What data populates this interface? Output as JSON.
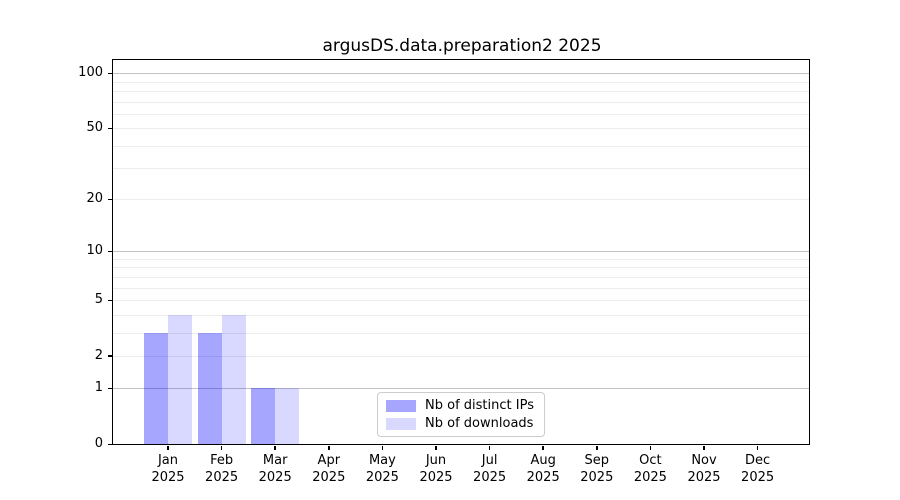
{
  "title": "argusDS.data.preparation2 2025",
  "colors": {
    "background": "#ffffff",
    "axis": "#000000",
    "grid_major": "#c3c3c3",
    "grid_minor": "#ececec",
    "legend_border": "#cccccc",
    "series_distinct_ips": "rgba(0,0,255,0.35)",
    "series_downloads": "rgba(0,0,255,0.15)"
  },
  "chart_data": {
    "type": "bar",
    "title": "argusDS.data.preparation2 2025",
    "categories": [
      "Jan",
      "Feb",
      "Mar",
      "Apr",
      "May",
      "Jun",
      "Jul",
      "Aug",
      "Sep",
      "Oct",
      "Nov",
      "Dec"
    ],
    "year_label": "2025",
    "series": [
      {
        "name": "Nb of distinct IPs",
        "color": "rgba(0,0,255,0.35)",
        "values": [
          3,
          3,
          1,
          0,
          0,
          0,
          0,
          0,
          0,
          0,
          0,
          0
        ]
      },
      {
        "name": "Nb of downloads",
        "color": "rgba(0,0,255,0.15)",
        "values": [
          4,
          4,
          1,
          0,
          0,
          0,
          0,
          0,
          0,
          0,
          0,
          0
        ]
      }
    ],
    "y_axis": {
      "scale": "log1p",
      "tick_labels": [
        0,
        1,
        2,
        5,
        10,
        20,
        50,
        100
      ],
      "grid_major": [
        1,
        10,
        100
      ],
      "grid_minor": [
        2,
        3,
        4,
        5,
        6,
        7,
        8,
        9,
        20,
        30,
        40,
        50,
        60,
        70,
        80,
        90
      ],
      "ylim": [
        0,
        118
      ]
    },
    "legend": {
      "position": "lower center",
      "items": [
        "Nb of distinct IPs",
        "Nb of downloads"
      ]
    }
  }
}
